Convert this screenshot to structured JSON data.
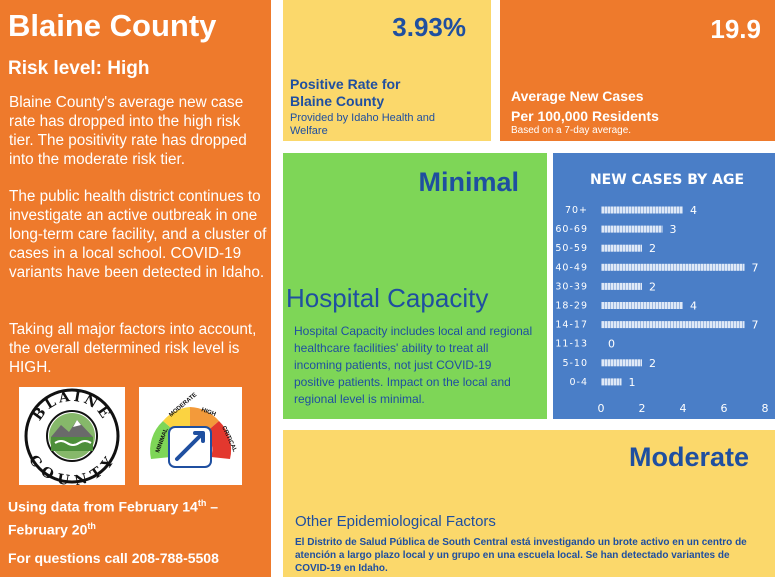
{
  "left_panel": {
    "title": "Blaine County",
    "risk_level": "Risk level: High",
    "paragraph_1": "Blaine County's average new case rate has dropped into the high risk tier. The positivity rate has dropped into the moderate risk tier.",
    "paragraph_2": "The public health district continues to investigate an active outbreak in one long-term care facility, and a cluster of cases in a local school. COVID-19 variants have been detected in Idaho.",
    "paragraph_3": "Taking all major factors into account, the overall determined risk level is HIGH.",
    "using_prefix": "Using data from February 14",
    "using_sup1": "th",
    "using_middle": "  –  February 20",
    "using_sup2": "th",
    "phone": "For questions call 208-788-5508",
    "seal_top_text": "BLAINE",
    "seal_bottom_text": "COUNTY",
    "gauge_labels": [
      "MINIMAL",
      "MODERATE",
      "HIGH",
      "CRITICAL"
    ]
  },
  "positive_rate": {
    "value": "3.93%",
    "label_line1": "Positive Rate for",
    "label_line2": "Blaine County",
    "source": "Provided by Idaho Health and Welfare"
  },
  "average_cases": {
    "value": "19.9",
    "label_line1": "Average New Cases",
    "label_line2": "Per 100,000 Residents",
    "note": "Based on a 7-day average."
  },
  "hospital": {
    "level": "Minimal",
    "heading": "Hospital Capacity",
    "description": "Hospital Capacity includes local and regional healthcare facilities' ability to treat all incoming patients, not just COVID-19 positive patients. Impact on the local and regional level is minimal."
  },
  "other_factors": {
    "level": "Moderate",
    "heading": "Other Epidemiological Factors",
    "description": "El Distrito de Salud Pública de South Central está investigando un brote activo en un centro de atención a largo plazo local y un grupo en una escuela local. Se han detectado variantes de COVID-19 en Idaho."
  },
  "colors": {
    "orange": "#ee7a2c",
    "yellow": "#fbd86b",
    "green": "#7ed657",
    "chart_blue": "#4a7ec7",
    "text_blue": "#1f4fa0"
  },
  "chart_data": {
    "type": "bar",
    "orientation": "horizontal",
    "title": "NEW CASES BY AGE",
    "categories": [
      "70+",
      "60-69",
      "50-59",
      "40-49",
      "30-39",
      "18-29",
      "14-17",
      "11-13",
      "5-10",
      "0-4"
    ],
    "values": [
      4,
      3,
      2,
      7,
      2,
      4,
      7,
      0,
      2,
      1
    ],
    "xlim": [
      0,
      8
    ],
    "xticks": [
      0,
      2,
      4,
      6,
      8
    ],
    "xlabel": "",
    "ylabel": "",
    "grid": false,
    "legend": "none"
  }
}
